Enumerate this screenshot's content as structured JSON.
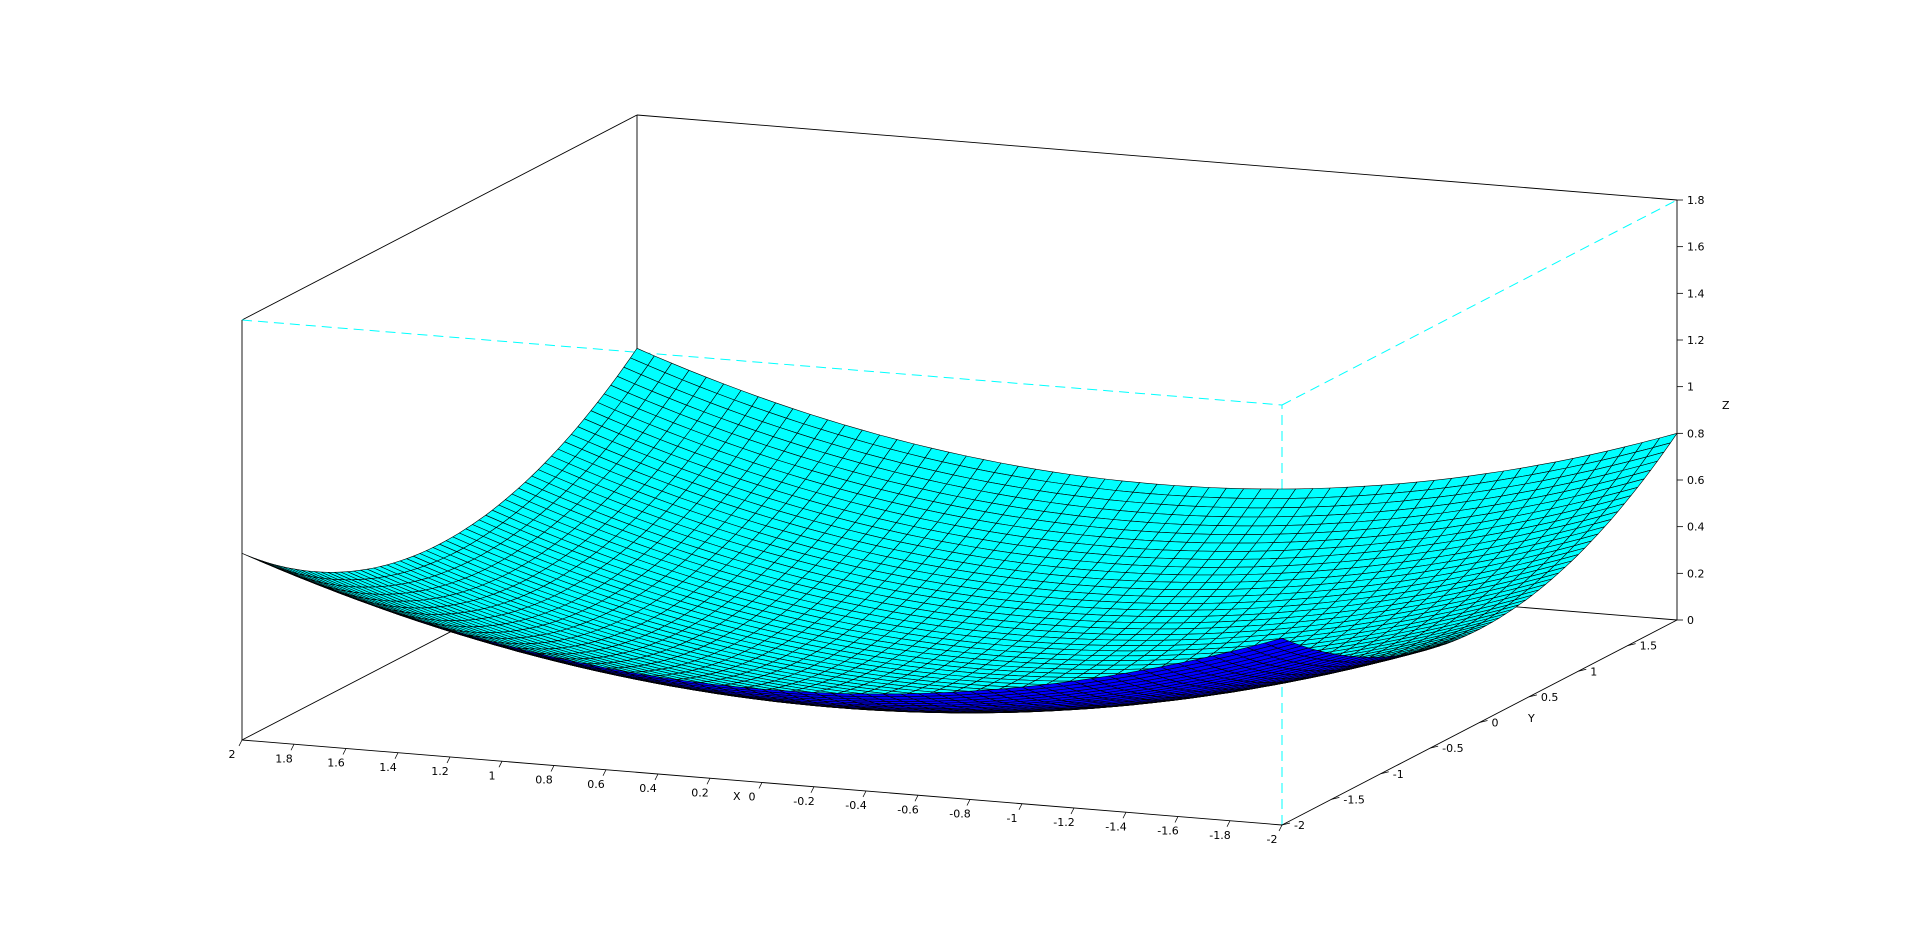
{
  "chart_data": {
    "type": "surface",
    "surface_function": "0.1 * (x^2 + y^2)",
    "x_range": [
      -2,
      2
    ],
    "y_range": [
      -2,
      2
    ],
    "zlim": [
      0,
      1.8
    ],
    "grid_resolution": 60,
    "surface_color": "#00ffff",
    "underside_color": "#0000ff",
    "mesh_color": "#000000",
    "hidden_axes_color": "#00ffff",
    "x_ticks": [
      "2",
      "1.8",
      "1.6",
      "1.4",
      "1.2",
      "1",
      "0.8",
      "0.6",
      "0.4",
      "0.2",
      "0",
      "-0.2",
      "-0.4",
      "-0.6",
      "-0.8",
      "-1",
      "-1.2",
      "-1.4",
      "-1.6",
      "-1.8",
      "-2"
    ],
    "y_ticks": [
      "-2",
      "-1.5",
      "-1",
      "-0.5",
      "0",
      "0.5",
      "1",
      "1.5"
    ],
    "z_ticks": [
      "0",
      "0.2",
      "0.4",
      "0.6",
      "0.8",
      "1",
      "1.2",
      "1.4",
      "1.6",
      "1.8"
    ],
    "xlabel": "X",
    "ylabel": "Y",
    "zlabel": "Z"
  }
}
